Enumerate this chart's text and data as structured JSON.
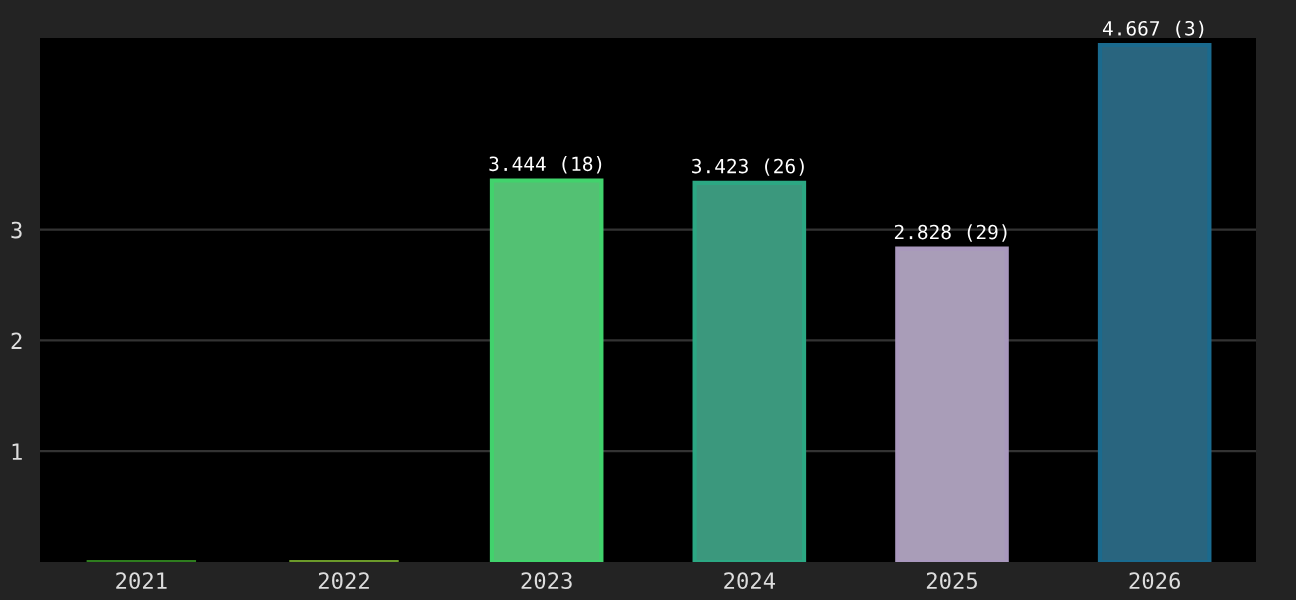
{
  "chart_data": {
    "type": "bar",
    "categories": [
      "2021",
      "2022",
      "2023",
      "2024",
      "2025",
      "2026"
    ],
    "values": [
      0,
      0,
      3.444,
      3.423,
      2.828,
      4.667
    ],
    "colors": [
      "#2e7d1e",
      "#6b9a2a",
      "#41d36c",
      "#2ca883",
      "#a998bd",
      "#1a6a8e"
    ],
    "value_labels": [
      null,
      null,
      "3.444 (18)",
      "3.423 (26)",
      "2.828 (29)",
      "4.667 (3)"
    ],
    "ylim": [
      0,
      4.73
    ],
    "yticks": [
      1,
      2,
      3
    ],
    "grid": "y",
    "legend": false
  }
}
